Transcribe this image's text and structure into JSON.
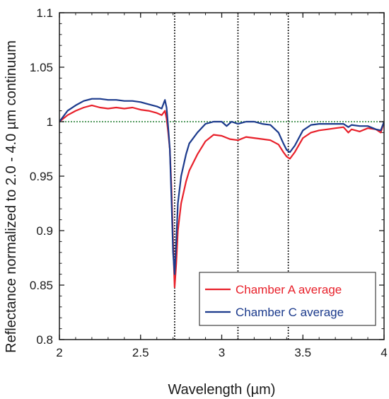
{
  "chart_data": {
    "type": "line",
    "xlabel": "Wavelength (µm)",
    "ylabel": "Reflectance normalized to 2.0 - 4.0 µm continuum",
    "xlim": [
      2,
      4
    ],
    "ylim": [
      0.8,
      1.1
    ],
    "x_ticks": [
      2,
      2.5,
      3,
      3.5,
      4
    ],
    "x_tick_labels": [
      "2",
      "2.5",
      "3",
      "3.5",
      "4"
    ],
    "y_ticks": [
      0.8,
      0.85,
      0.9,
      0.95,
      1,
      1.05,
      1.1
    ],
    "y_tick_labels": [
      "0.8",
      "0.85",
      "0.9",
      "0.95",
      "1",
      "1.05",
      "1.1"
    ],
    "grid": false,
    "legend_position": "bottom-right",
    "reference_line": {
      "y": 1.0,
      "color": "#1a7a2a",
      "style": "dotted"
    },
    "vertical_markers": [
      2.71,
      3.1,
      3.41
    ],
    "series": [
      {
        "name": "Chamber A average",
        "color": "#e8202a",
        "x": [
          2.0,
          2.05,
          2.1,
          2.15,
          2.2,
          2.25,
          2.3,
          2.35,
          2.4,
          2.45,
          2.5,
          2.55,
          2.6,
          2.63,
          2.65,
          2.66,
          2.67,
          2.68,
          2.69,
          2.7,
          2.71,
          2.72,
          2.73,
          2.75,
          2.78,
          2.8,
          2.85,
          2.9,
          2.95,
          3.0,
          3.05,
          3.1,
          3.15,
          3.2,
          3.25,
          3.3,
          3.35,
          3.38,
          3.4,
          3.42,
          3.45,
          3.5,
          3.55,
          3.6,
          3.65,
          3.7,
          3.75,
          3.78,
          3.8,
          3.85,
          3.9,
          3.95,
          3.98,
          4.0
        ],
        "y": [
          1.0,
          1.006,
          1.01,
          1.013,
          1.015,
          1.013,
          1.012,
          1.013,
          1.012,
          1.013,
          1.011,
          1.01,
          1.008,
          1.006,
          1.01,
          1.003,
          0.99,
          0.975,
          0.94,
          0.89,
          0.848,
          0.87,
          0.9,
          0.925,
          0.945,
          0.955,
          0.97,
          0.982,
          0.988,
          0.987,
          0.984,
          0.983,
          0.986,
          0.985,
          0.984,
          0.983,
          0.979,
          0.972,
          0.968,
          0.966,
          0.972,
          0.985,
          0.99,
          0.992,
          0.993,
          0.994,
          0.995,
          0.99,
          0.993,
          0.991,
          0.994,
          0.993,
          0.99,
          1.0
        ]
      },
      {
        "name": "Chamber C average",
        "color": "#1b3a8c",
        "x": [
          2.0,
          2.05,
          2.1,
          2.15,
          2.2,
          2.25,
          2.3,
          2.35,
          2.4,
          2.45,
          2.5,
          2.55,
          2.6,
          2.63,
          2.65,
          2.66,
          2.67,
          2.68,
          2.69,
          2.7,
          2.71,
          2.72,
          2.73,
          2.75,
          2.78,
          2.8,
          2.85,
          2.9,
          2.95,
          3.0,
          3.03,
          3.06,
          3.1,
          3.15,
          3.2,
          3.25,
          3.3,
          3.35,
          3.38,
          3.4,
          3.42,
          3.45,
          3.5,
          3.55,
          3.6,
          3.65,
          3.7,
          3.75,
          3.78,
          3.8,
          3.85,
          3.9,
          3.95,
          3.98,
          4.0
        ],
        "y": [
          1.0,
          1.01,
          1.015,
          1.019,
          1.021,
          1.021,
          1.02,
          1.02,
          1.019,
          1.019,
          1.018,
          1.016,
          1.014,
          1.012,
          1.02,
          1.013,
          0.995,
          0.975,
          0.93,
          0.88,
          0.86,
          0.89,
          0.925,
          0.95,
          0.97,
          0.98,
          0.99,
          0.998,
          1.0,
          1.0,
          0.996,
          1.0,
          0.998,
          1.0,
          1.0,
          0.998,
          0.997,
          0.99,
          0.98,
          0.974,
          0.972,
          0.978,
          0.992,
          0.997,
          0.998,
          0.998,
          0.998,
          0.998,
          0.995,
          0.997,
          0.996,
          0.996,
          0.993,
          0.992,
          1.0
        ]
      }
    ]
  }
}
